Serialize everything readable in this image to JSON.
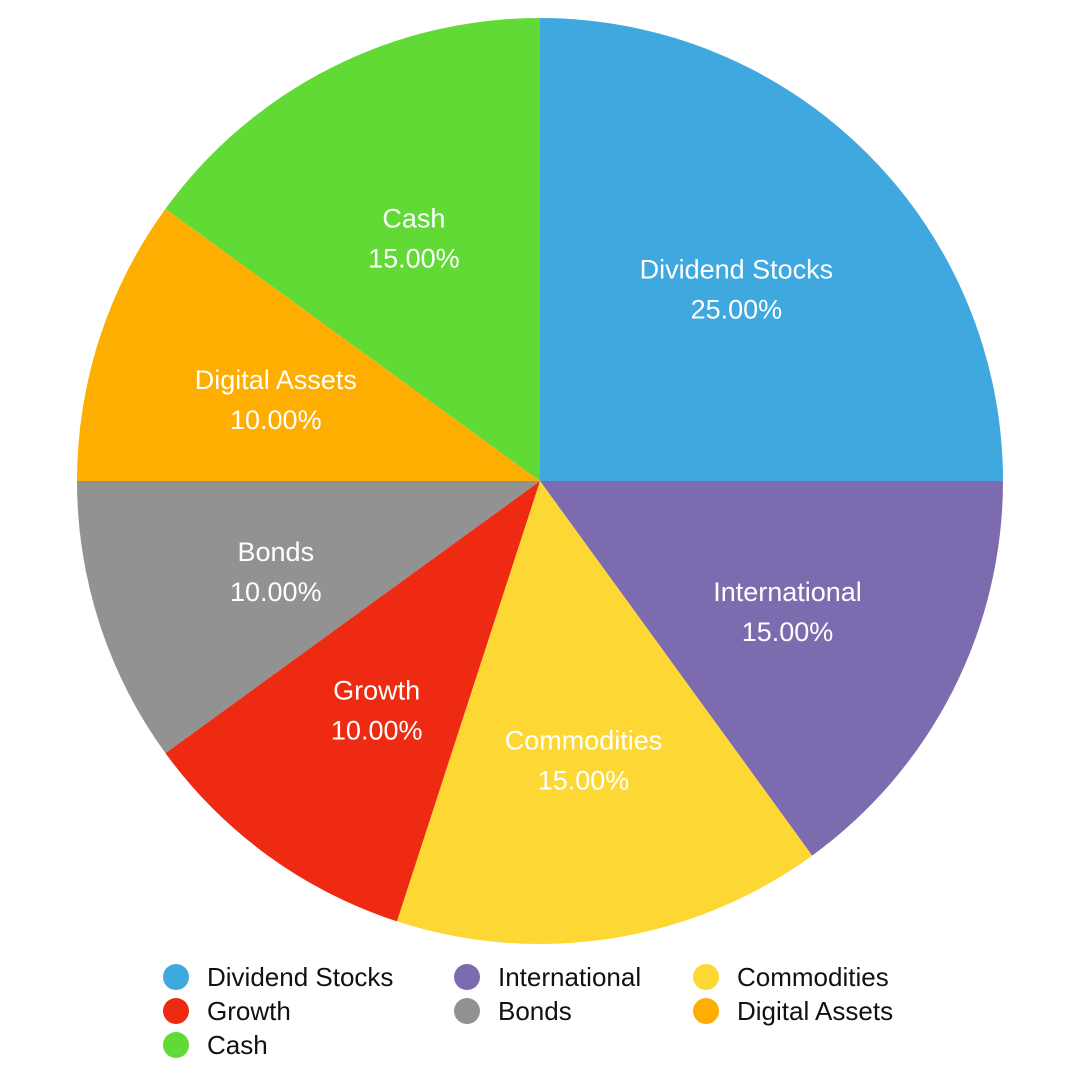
{
  "chart_data": {
    "type": "pie",
    "title": "",
    "slices": [
      {
        "label": "Dividend Stocks",
        "value": 25.0,
        "display": "25.00%",
        "color": "#3FA8DE"
      },
      {
        "label": "International",
        "value": 15.0,
        "display": "15.00%",
        "color": "#7D6BB0"
      },
      {
        "label": "Commodities",
        "value": 15.0,
        "display": "15.00%",
        "color": "#FDD835"
      },
      {
        "label": "Growth",
        "value": 10.0,
        "display": "10.00%",
        "color": "#EE2A12"
      },
      {
        "label": "Bonds",
        "value": 10.0,
        "display": "10.00%",
        "color": "#929292"
      },
      {
        "label": "Digital Assets",
        "value": 10.0,
        "display": "10.00%",
        "color": "#FDAE00"
      },
      {
        "label": "Cash",
        "value": 15.0,
        "display": "15.00%",
        "color": "#61DA35"
      }
    ],
    "legend": {
      "placement": "bottom",
      "entries": [
        "Dividend Stocks",
        "International",
        "Commodities",
        "Growth",
        "Bonds",
        "Digital Assets",
        "Cash"
      ]
    }
  }
}
